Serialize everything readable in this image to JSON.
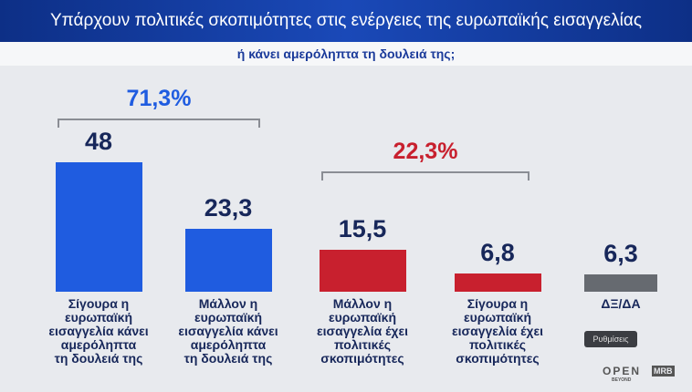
{
  "chart_data": {
    "type": "bar",
    "title": "Υπάρχουν πολιτικές σκοπιμότητες στις ενέργειες της ευρωπαϊκής εισαγγελίας",
    "subtitle": "ή κάνει αμερόληπτα τη δουλειά της;",
    "categories": [
      "Σίγουρα η\nευρωπαϊκή\nεισαγγελία κάνει\nαμερόληπτα\nτη δουλειά της",
      "Μάλλον η\nευρωπαϊκή\nεισαγγελία κάνει\nαμερόληπτα\nτη δουλειά της",
      "Μάλλον η\nευρωπαϊκή\nεισαγγελία έχει\nπολιτικές\nσκοπιμότητες",
      "Σίγουρα η\nευρωπαϊκή\nεισαγγελία έχει\nπολιτικές\nσκοπιμότητες",
      "ΔΞ/ΔΑ"
    ],
    "values": [
      48,
      23.3,
      15.5,
      6.8,
      6.3
    ],
    "value_labels": [
      "48",
      "23,3",
      "15,5",
      "6,8",
      "6,3"
    ],
    "colors": [
      "#1f5ce0",
      "#1f5ce0",
      "#c8202e",
      "#c8202e",
      "#666a70"
    ],
    "annotations": [
      {
        "text": "71,3%",
        "color": "#1f5ce0"
      },
      {
        "text": "22,3%",
        "color": "#c8202e"
      }
    ],
    "button": "Ρυθμίσεις",
    "logos": [
      "OPEN",
      "BEYOND",
      "MRB"
    ]
  }
}
